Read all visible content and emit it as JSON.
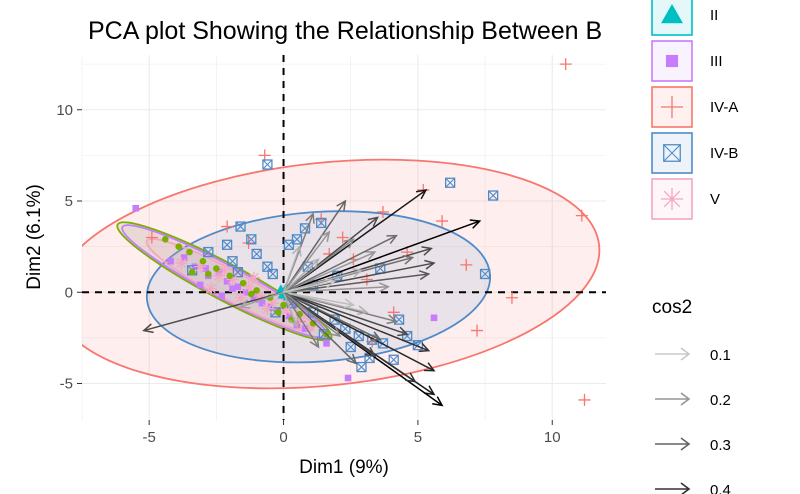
{
  "chart_data": {
    "type": "scatter",
    "title": "PCA plot Showing the Relationship Between B",
    "xlabel": "Dim1 (9%)",
    "ylabel": "Dim2 (6.1%)",
    "xlim": [
      -7.5,
      12
    ],
    "ylim": [
      -7,
      13
    ],
    "x_ticks": [
      -5,
      0,
      5,
      10
    ],
    "y_ticks": [
      -5,
      0,
      5,
      10
    ],
    "x_tick_labels": [
      "-5",
      "0",
      "5",
      "10"
    ],
    "y_tick_labels": [
      "-5",
      "0",
      "5",
      "10"
    ],
    "grid": true,
    "legend_position": "right",
    "reference_lines": {
      "x": 0,
      "y": 0,
      "style": "dashed"
    },
    "groups": [
      {
        "name": "II",
        "marker": "triangle",
        "color": "#00BFC4",
        "points": [
          [
            0.1,
            0.2
          ],
          [
            0.2,
            -0.2
          ],
          [
            -0.1,
            0.1
          ],
          [
            0.0,
            -0.1
          ]
        ]
      },
      {
        "name": "III",
        "marker": "square",
        "color": "#C77CFF",
        "points": [
          [
            -5.5,
            4.6
          ],
          [
            -4.2,
            1.7
          ],
          [
            -3.3,
            1.4
          ],
          [
            -2.8,
            0.9
          ],
          [
            -2.4,
            1.1
          ],
          [
            -2.1,
            0.6
          ],
          [
            -1.7,
            0.3
          ],
          [
            -1.4,
            0.0
          ],
          [
            -1.1,
            -0.3
          ],
          [
            -0.8,
            -0.6
          ],
          [
            -0.5,
            -0.8
          ],
          [
            -0.2,
            -1.0
          ],
          [
            0.2,
            -1.3
          ],
          [
            0.8,
            -2.0
          ],
          [
            1.6,
            -2.8
          ],
          [
            2.4,
            -4.7
          ],
          [
            5.6,
            -1.4
          ],
          [
            -3.7,
            1.9
          ],
          [
            -2.9,
            1.3
          ],
          [
            -1.9,
            0.2
          ],
          [
            -0.9,
            -0.4
          ],
          [
            0.5,
            -1.8
          ],
          [
            -3.1,
            0.4
          ],
          [
            -2.3,
            -0.2
          ]
        ]
      },
      {
        "name": "IV-A",
        "marker": "cross",
        "color": "#F8766D",
        "points": [
          [
            10.5,
            12.5
          ],
          [
            11.1,
            4.2
          ],
          [
            11.2,
            -5.9
          ],
          [
            8.5,
            -0.3
          ],
          [
            5.9,
            3.9
          ],
          [
            5.2,
            5.6
          ],
          [
            3.7,
            4.4
          ],
          [
            1.4,
            4.0
          ],
          [
            -0.7,
            7.5
          ],
          [
            -2.1,
            3.6
          ],
          [
            -4.9,
            3.0
          ],
          [
            3.1,
            0.7
          ],
          [
            4.1,
            -1.1
          ],
          [
            6.8,
            1.5
          ],
          [
            1.7,
            2.1
          ],
          [
            2.6,
            1.8
          ],
          [
            -1.3,
            2.7
          ],
          [
            7.2,
            -2.1
          ],
          [
            0.6,
            -1.6
          ],
          [
            3.3,
            -2.7
          ],
          [
            2.2,
            3.0
          ],
          [
            4.6,
            2.2
          ]
        ]
      },
      {
        "name": "IV-B",
        "marker": "boxx",
        "color": "#4F8BC9",
        "points": [
          [
            -0.6,
            7.0
          ],
          [
            6.2,
            6.0
          ],
          [
            7.8,
            5.3
          ],
          [
            7.5,
            1.0
          ],
          [
            0.8,
            3.5
          ],
          [
            1.4,
            3.8
          ],
          [
            -2.1,
            2.6
          ],
          [
            -1.6,
            3.6
          ],
          [
            -1.9,
            1.7
          ],
          [
            -1.0,
            2.1
          ],
          [
            -2.8,
            2.2
          ],
          [
            -1.2,
            2.9
          ],
          [
            0.2,
            2.6
          ],
          [
            0.5,
            2.9
          ],
          [
            -1.7,
            1.1
          ],
          [
            -0.6,
            1.4
          ],
          [
            0.9,
            1.4
          ],
          [
            0.3,
            -0.6
          ],
          [
            1.1,
            -1.1
          ],
          [
            1.9,
            -1.5
          ],
          [
            2.3,
            -2.0
          ],
          [
            2.8,
            -2.4
          ],
          [
            3.3,
            -2.6
          ],
          [
            3.7,
            -2.8
          ],
          [
            4.1,
            -3.7
          ],
          [
            4.6,
            -2.4
          ],
          [
            2.9,
            -4.1
          ],
          [
            3.2,
            -3.6
          ],
          [
            -0.3,
            -1.1
          ],
          [
            1.5,
            -2.3
          ],
          [
            5.0,
            -2.9
          ],
          [
            4.3,
            -1.5
          ],
          [
            2.0,
            0.9
          ],
          [
            3.6,
            1.3
          ],
          [
            -0.4,
            1.0
          ],
          [
            1.1,
            0.4
          ],
          [
            -3.4,
            1.2
          ],
          [
            2.5,
            -3.0
          ]
        ]
      },
      {
        "name": "V",
        "marker": "star",
        "color": "#F5A6C2",
        "points": [
          [
            -3.1,
            1.4
          ],
          [
            -2.4,
            0.9
          ],
          [
            -1.9,
            0.7
          ],
          [
            -1.3,
            0.3
          ],
          [
            -0.9,
            -0.2
          ],
          [
            -0.4,
            -0.6
          ],
          [
            0.1,
            -1.0
          ],
          [
            0.6,
            -1.4
          ],
          [
            -2.7,
            0.2
          ],
          [
            -1.6,
            -0.3
          ],
          [
            -0.6,
            -0.9
          ],
          [
            -3.8,
            1.6
          ],
          [
            1.0,
            -1.9
          ],
          [
            -2.2,
            1.2
          ],
          [
            -1.1,
            0.8
          ]
        ]
      },
      {
        "name": "",
        "marker": "circle",
        "color": "#7CAE00",
        "points": [
          [
            -4.4,
            2.9
          ],
          [
            -3.9,
            2.5
          ],
          [
            -3.5,
            2.2
          ],
          [
            -3.0,
            1.7
          ],
          [
            -2.5,
            1.3
          ],
          [
            -2.0,
            0.9
          ],
          [
            -1.5,
            0.5
          ],
          [
            -1.0,
            0.1
          ],
          [
            -0.5,
            -0.3
          ],
          [
            0.0,
            -0.7
          ],
          [
            0.6,
            -1.2
          ],
          [
            1.1,
            -1.7
          ],
          [
            1.6,
            -2.3
          ],
          [
            -2.8,
            1.0
          ],
          [
            -1.2,
            -0.1
          ],
          [
            0.3,
            -1.5
          ],
          [
            -3.4,
            1.1
          ],
          [
            -0.2,
            -1.1
          ]
        ]
      }
    ],
    "ellipses": [
      {
        "group": "IV-A",
        "color": "#F8766D",
        "fill": "#F8766D",
        "center": [
          1.6,
          1.0
        ],
        "semi_axes": [
          10.2,
          6.1
        ],
        "angle_deg": 6
      },
      {
        "group": "IV-B",
        "color": "#4F8BC9",
        "fill": "#4F8BC9",
        "center": [
          1.3,
          0.3
        ],
        "semi_axes": [
          6.4,
          4.1
        ],
        "angle_deg": 4
      },
      {
        "group": "",
        "color": "#7CAE00",
        "fill": "#7CAE00",
        "center": [
          -2.2,
          0.6
        ],
        "semi_axes": [
          4.5,
          1.0
        ],
        "angle_deg": -28
      },
      {
        "group": "III",
        "color": "#C77CFF",
        "fill": "#C77CFF",
        "center": [
          -2.2,
          0.6
        ],
        "semi_axes": [
          4.3,
          0.9
        ],
        "angle_deg": -28
      },
      {
        "group": "V",
        "color": "#F5A6C2",
        "fill": "#F5A6C2",
        "center": [
          -2.0,
          0.4
        ],
        "semi_axes": [
          3.5,
          0.8
        ],
        "angle_deg": -28
      }
    ],
    "arrows": [
      {
        "x": 5.3,
        "y": 5.6,
        "cos2": 0.45
      },
      {
        "x": 7.3,
        "y": 3.9,
        "cos2": 0.5
      },
      {
        "x": 5.5,
        "y": 2.4,
        "cos2": 0.35
      },
      {
        "x": 5.6,
        "y": 1.6,
        "cos2": 0.35
      },
      {
        "x": 5.4,
        "y": 1.0,
        "cos2": 0.32
      },
      {
        "x": 4.8,
        "y": 1.9,
        "cos2": 0.28
      },
      {
        "x": 4.6,
        "y": -2.3,
        "cos2": 0.35
      },
      {
        "x": 5.4,
        "y": -3.2,
        "cos2": 0.4
      },
      {
        "x": 5.6,
        "y": -4.3,
        "cos2": 0.42
      },
      {
        "x": 5.6,
        "y": -5.6,
        "cos2": 0.45
      },
      {
        "x": 5.9,
        "y": -6.2,
        "cos2": 0.5
      },
      {
        "x": 4.9,
        "y": -4.9,
        "cos2": 0.4
      },
      {
        "x": 3.4,
        "y": -3.5,
        "cos2": 0.35
      },
      {
        "x": 2.7,
        "y": -3.9,
        "cos2": 0.3
      },
      {
        "x": 4.2,
        "y": -1.6,
        "cos2": 0.25
      },
      {
        "x": 3.1,
        "y": -1.1,
        "cos2": 0.15
      },
      {
        "x": 2.6,
        "y": -0.7,
        "cos2": 0.12
      },
      {
        "x": 3.9,
        "y": 0.3,
        "cos2": 0.2
      },
      {
        "x": 2.3,
        "y": 5.0,
        "cos2": 0.3
      },
      {
        "x": 3.5,
        "y": 4.1,
        "cos2": 0.35
      },
      {
        "x": 1.1,
        "y": 4.3,
        "cos2": 0.25
      },
      {
        "x": 1.7,
        "y": 3.3,
        "cos2": 0.2
      },
      {
        "x": 2.6,
        "y": 2.9,
        "cos2": 0.22
      },
      {
        "x": 3.4,
        "y": 2.2,
        "cos2": 0.2
      },
      {
        "x": 4.2,
        "y": 3.1,
        "cos2": 0.28
      },
      {
        "x": 1.3,
        "y": 1.8,
        "cos2": 0.15
      },
      {
        "x": 2.9,
        "y": 1.2,
        "cos2": 0.14
      },
      {
        "x": 0.6,
        "y": 2.5,
        "cos2": 0.15
      },
      {
        "x": 2.1,
        "y": -2.4,
        "cos2": 0.22
      },
      {
        "x": 1.3,
        "y": -3.0,
        "cos2": 0.25
      },
      {
        "x": 0.5,
        "y": -1.9,
        "cos2": 0.15
      },
      {
        "x": 3.6,
        "y": -2.6,
        "cos2": 0.3
      },
      {
        "x": -5.2,
        "y": -2.1,
        "cos2": 0.35
      },
      {
        "x": -1.6,
        "y": -0.8,
        "cos2": 0.18
      },
      {
        "x": 1.9,
        "y": 0.6,
        "cos2": 0.1
      }
    ],
    "legend": {
      "group_entries": [
        {
          "label": "II",
          "marker": "triangle",
          "color": "#00BFC4"
        },
        {
          "label": "III",
          "marker": "square",
          "color": "#C77CFF"
        },
        {
          "label": "IV-A",
          "marker": "cross",
          "color": "#F8766D"
        },
        {
          "label": "IV-B",
          "marker": "boxx",
          "color": "#4F8BC9"
        },
        {
          "label": "V",
          "marker": "star",
          "color": "#F5A6C2"
        }
      ],
      "cos2_title": "cos2",
      "cos2_entries": [
        {
          "label": "0.1",
          "value": 0.1
        },
        {
          "label": "0.2",
          "value": 0.2
        },
        {
          "label": "0.3",
          "value": 0.3
        },
        {
          "label": "0.4",
          "value": 0.4
        }
      ]
    }
  }
}
